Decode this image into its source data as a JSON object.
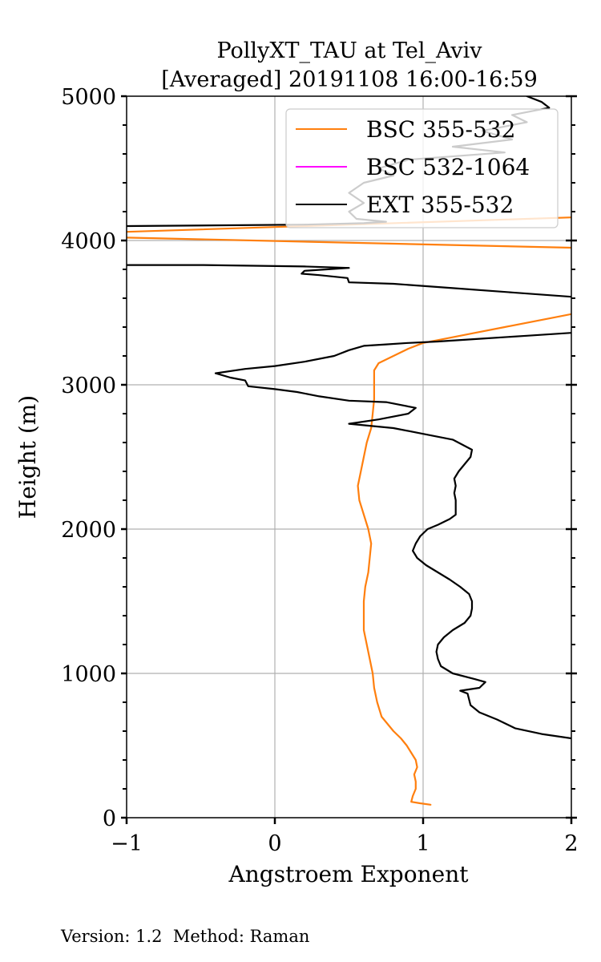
{
  "chart_data": {
    "type": "line",
    "title": [
      "PollyXT_TAU at Tel_Aviv",
      "[Averaged] 20191108 16:00-16:59"
    ],
    "xlabel": "Angstroem Exponent",
    "ylabel": "Height (m)",
    "xlim": [
      -1,
      2
    ],
    "ylim": [
      0,
      5000
    ],
    "xticks": [
      -1,
      0,
      1,
      2
    ],
    "xtick_labels": [
      "−1",
      "0",
      "1",
      "2"
    ],
    "yticks": [
      0,
      1000,
      2000,
      3000,
      4000,
      5000
    ],
    "ytick_labels": [
      "0",
      "1000",
      "2000",
      "3000",
      "4000",
      "5000"
    ],
    "grid": true,
    "legend_position": "top-right",
    "footer": "Version: 1.2  Method: Raman",
    "colors": {
      "bsc_355_532": "#ff7f0e",
      "bsc_532_1064": "#ff00ff",
      "ext_355_532": "#000000",
      "grid": "#b0b0b0"
    },
    "series": [
      {
        "name": "BSC 355-532",
        "color": "#ff7f0e",
        "points": [
          [
            1.05,
            90
          ],
          [
            0.98,
            100
          ],
          [
            0.92,
            110
          ],
          [
            0.93,
            150
          ],
          [
            0.95,
            200
          ],
          [
            0.95,
            250
          ],
          [
            0.94,
            300
          ],
          [
            0.96,
            350
          ],
          [
            0.95,
            400
          ],
          [
            0.92,
            450
          ],
          [
            0.89,
            500
          ],
          [
            0.85,
            550
          ],
          [
            0.8,
            600
          ],
          [
            0.76,
            650
          ],
          [
            0.72,
            700
          ],
          [
            0.69,
            800
          ],
          [
            0.67,
            900
          ],
          [
            0.66,
            1000
          ],
          [
            0.64,
            1100
          ],
          [
            0.62,
            1200
          ],
          [
            0.6,
            1300
          ],
          [
            0.6,
            1400
          ],
          [
            0.6,
            1500
          ],
          [
            0.61,
            1600
          ],
          [
            0.63,
            1700
          ],
          [
            0.64,
            1800
          ],
          [
            0.65,
            1900
          ],
          [
            0.63,
            2000
          ],
          [
            0.6,
            2100
          ],
          [
            0.57,
            2200
          ],
          [
            0.56,
            2300
          ],
          [
            0.58,
            2400
          ],
          [
            0.6,
            2500
          ],
          [
            0.62,
            2600
          ],
          [
            0.65,
            2700
          ],
          [
            0.66,
            2800
          ],
          [
            0.67,
            2900
          ],
          [
            0.67,
            3000
          ],
          [
            0.67,
            3050
          ],
          [
            0.67,
            3100
          ],
          [
            0.7,
            3150
          ],
          [
            0.8,
            3200
          ],
          [
            0.9,
            3250
          ],
          [
            1.0,
            3290
          ],
          [
            1.15,
            3320
          ],
          [
            1.35,
            3360
          ],
          [
            1.55,
            3400
          ],
          [
            1.75,
            3440
          ],
          [
            1.9,
            3470
          ],
          [
            2.0,
            3490
          ]
        ]
      },
      {
        "name": "BSC 355-532",
        "color": "#ff7f0e",
        "points": [
          [
            2.0,
            3950
          ],
          [
            -1.0,
            4020
          ]
        ]
      },
      {
        "name": "BSC 355-532",
        "color": "#ff7f0e",
        "points": [
          [
            -1.0,
            4060
          ],
          [
            2.0,
            4160
          ]
        ]
      },
      {
        "name": "BSC 532-1064",
        "color": "#ff00ff",
        "points": []
      },
      {
        "name": "EXT 355-532",
        "color": "#000000",
        "points": [
          [
            2.0,
            550
          ],
          [
            1.8,
            580
          ],
          [
            1.62,
            620
          ],
          [
            1.5,
            680
          ],
          [
            1.38,
            730
          ],
          [
            1.32,
            780
          ],
          [
            1.3,
            860
          ],
          [
            1.25,
            880
          ],
          [
            1.38,
            900
          ],
          [
            1.42,
            940
          ],
          [
            1.35,
            960
          ],
          [
            1.2,
            1000
          ],
          [
            1.12,
            1050
          ],
          [
            1.1,
            1100
          ],
          [
            1.09,
            1150
          ],
          [
            1.1,
            1200
          ],
          [
            1.14,
            1250
          ],
          [
            1.2,
            1300
          ],
          [
            1.28,
            1350
          ],
          [
            1.32,
            1400
          ],
          [
            1.33,
            1450
          ],
          [
            1.33,
            1500
          ],
          [
            1.31,
            1550
          ],
          [
            1.25,
            1600
          ],
          [
            1.18,
            1650
          ],
          [
            1.1,
            1700
          ],
          [
            1.02,
            1750
          ],
          [
            0.96,
            1800
          ],
          [
            0.93,
            1850
          ],
          [
            0.95,
            1900
          ],
          [
            0.98,
            1950
          ],
          [
            1.03,
            2000
          ],
          [
            1.1,
            2030
          ],
          [
            1.18,
            2070
          ],
          [
            1.22,
            2100
          ],
          [
            1.22,
            2150
          ],
          [
            1.22,
            2200
          ],
          [
            1.21,
            2250
          ],
          [
            1.22,
            2300
          ],
          [
            1.21,
            2350
          ],
          [
            1.24,
            2400
          ],
          [
            1.28,
            2450
          ],
          [
            1.32,
            2500
          ],
          [
            1.33,
            2550
          ],
          [
            1.2,
            2620
          ],
          [
            1.0,
            2660
          ],
          [
            0.8,
            2700
          ],
          [
            0.5,
            2730
          ],
          [
            0.7,
            2760
          ],
          [
            0.9,
            2800
          ],
          [
            0.95,
            2840
          ],
          [
            0.75,
            2880
          ],
          [
            0.5,
            2890
          ],
          [
            0.3,
            2920
          ],
          [
            0.15,
            2950
          ],
          [
            0.0,
            2970
          ],
          [
            -0.18,
            2990
          ],
          [
            -0.2,
            3030
          ],
          [
            -0.3,
            3050
          ],
          [
            -0.4,
            3080
          ],
          [
            -0.2,
            3110
          ],
          [
            0.0,
            3130
          ],
          [
            0.2,
            3160
          ],
          [
            0.4,
            3200
          ],
          [
            0.5,
            3240
          ],
          [
            0.6,
            3270
          ],
          [
            0.75,
            3280
          ],
          [
            0.9,
            3290
          ],
          [
            1.1,
            3300
          ],
          [
            1.4,
            3320
          ],
          [
            1.7,
            3340
          ],
          [
            2.0,
            3360
          ],
          null,
          [
            2.0,
            3610
          ],
          [
            1.6,
            3640
          ],
          [
            1.2,
            3670
          ],
          [
            0.8,
            3700
          ],
          [
            0.5,
            3710
          ],
          [
            0.49,
            3740
          ],
          [
            0.3,
            3760
          ],
          [
            0.18,
            3770
          ],
          [
            0.2,
            3790
          ],
          [
            0.35,
            3800
          ],
          [
            0.5,
            3810
          ],
          [
            0.2,
            3820
          ],
          [
            -0.5,
            3830
          ],
          [
            -1.0,
            3830
          ],
          null,
          [
            -1.0,
            4100
          ],
          [
            0.2,
            4110
          ],
          [
            0.6,
            4120
          ],
          [
            0.75,
            4130
          ],
          [
            0.55,
            4150
          ],
          [
            0.5,
            4200
          ],
          [
            0.6,
            4260
          ],
          [
            0.5,
            4330
          ],
          [
            0.6,
            4400
          ],
          [
            0.8,
            4450
          ],
          [
            0.7,
            4500
          ],
          [
            0.9,
            4560
          ],
          [
            1.55,
            4610
          ],
          [
            1.2,
            4650
          ],
          [
            1.6,
            4700
          ],
          [
            1.4,
            4760
          ],
          [
            1.7,
            4820
          ],
          [
            1.6,
            4870
          ],
          [
            1.85,
            4920
          ],
          [
            1.8,
            4960
          ],
          [
            1.7,
            5000
          ]
        ]
      }
    ]
  }
}
